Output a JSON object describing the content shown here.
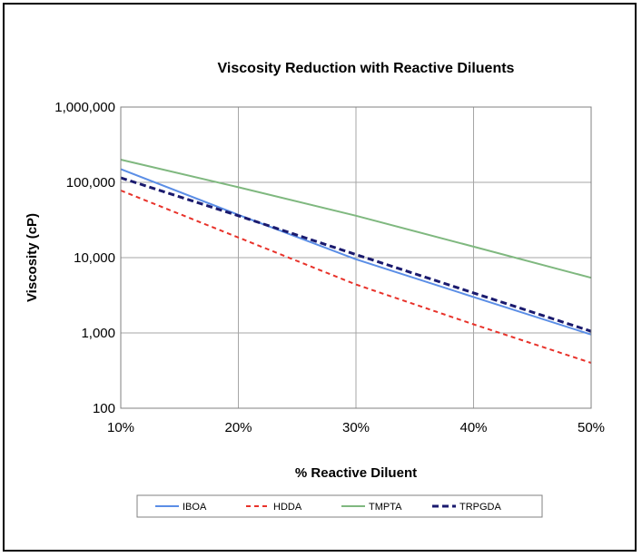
{
  "chart_data": {
    "type": "line",
    "title": "Viscosity Reduction with Reactive Diluents",
    "xlabel": "% Reactive Diluent",
    "ylabel": "Viscosity  (cP)",
    "x": [
      10,
      20,
      30,
      40,
      50
    ],
    "x_tick_labels": [
      "10%",
      "20%",
      "30%",
      "40%",
      "50%"
    ],
    "xlim": [
      10,
      50
    ],
    "y_scale": "log",
    "ylim": [
      100,
      1000000
    ],
    "y_ticks": [
      100,
      1000,
      10000,
      100000,
      1000000
    ],
    "y_tick_labels": [
      "100",
      "1,000",
      "10,000",
      "100,000",
      "1,000,000"
    ],
    "grid": true,
    "legend_position": "bottom",
    "series": [
      {
        "name": "IBOA",
        "values": [
          150000,
          37000,
          9500,
          3000,
          950
        ],
        "color": "#5b8ee6",
        "style": "solid"
      },
      {
        "name": "HDDA",
        "values": [
          78000,
          18500,
          4400,
          1300,
          400
        ],
        "color": "#e8322a",
        "style": "dashed"
      },
      {
        "name": "TMPTA",
        "values": [
          200000,
          86000,
          36000,
          14000,
          5400
        ],
        "color": "#7fb87f",
        "style": "solid"
      },
      {
        "name": "TRPGDA",
        "values": [
          115000,
          36000,
          11000,
          3400,
          1050
        ],
        "color": "#1a1a6e",
        "style": "dashed-bold"
      }
    ]
  }
}
